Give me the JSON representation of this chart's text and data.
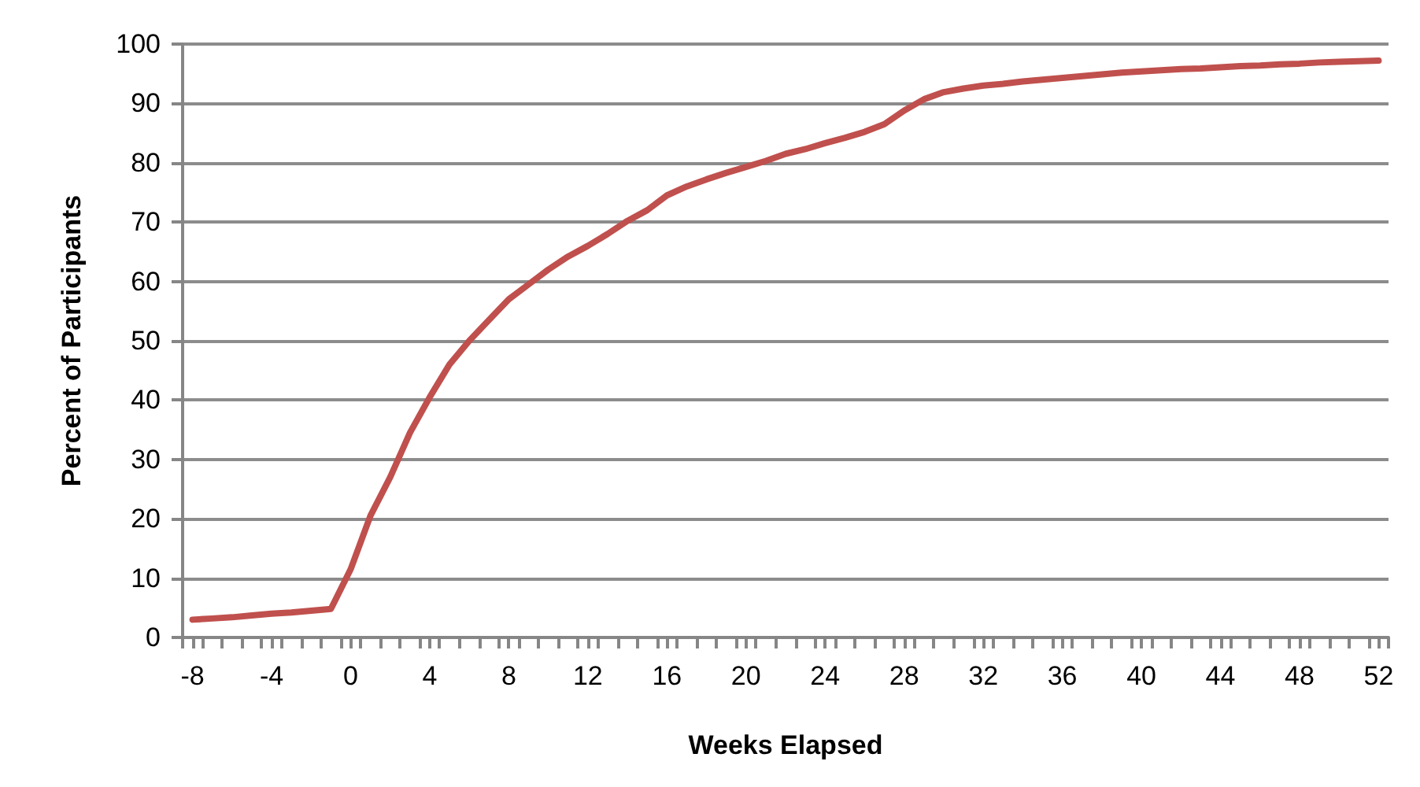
{
  "chart_data": {
    "type": "line",
    "xlabel": "Weeks Elapsed",
    "ylabel": "Percent of Participants",
    "x": [
      -8,
      -7,
      -6,
      -5,
      -4,
      -3,
      -2,
      -1,
      0,
      1,
      2,
      3,
      4,
      5,
      6,
      7,
      8,
      9,
      10,
      11,
      12,
      13,
      14,
      15,
      16,
      17,
      18,
      19,
      20,
      21,
      22,
      23,
      24,
      25,
      26,
      27,
      28,
      29,
      30,
      31,
      32,
      33,
      34,
      35,
      36,
      37,
      38,
      39,
      40,
      41,
      42,
      43,
      44,
      45,
      46,
      47,
      48,
      49,
      50,
      51,
      52
    ],
    "series": [
      {
        "color": "#c0504d",
        "values": [
          3,
          3.2,
          3.4,
          3.7,
          4,
          4.2,
          4.5,
          4.8,
          11.5,
          20.5,
          27,
          34.5,
          40.5,
          46,
          50,
          53.5,
          57,
          59.5,
          62,
          64.2,
          66,
          68,
          70.2,
          72,
          74.5,
          76,
          77.2,
          78.3,
          79.3,
          80.3,
          81.5,
          82.3,
          83.3,
          84.2,
          85.2,
          86.5,
          88.8,
          90.7,
          91.9,
          92.5,
          93,
          93.3,
          93.7,
          94,
          94.3,
          94.6,
          94.9,
          95.2,
          95.4,
          95.6,
          95.8,
          95.9,
          96.1,
          96.3,
          96.4,
          96.6,
          96.7,
          96.9,
          97,
          97.1,
          97.2
        ]
      }
    ],
    "xlim": [
      -8.5,
      52.5
    ],
    "xticks": [
      -8,
      -4,
      0,
      4,
      8,
      12,
      16,
      20,
      24,
      28,
      32,
      36,
      40,
      44,
      48,
      52,
      {
        "value": -8.5,
        "label": null
      },
      {
        "value": -7.5,
        "label": null
      },
      {
        "value": -6.5,
        "label": null
      },
      {
        "value": -5.5,
        "label": null
      },
      {
        "value": -4.5,
        "label": null
      },
      {
        "value": -3.5,
        "label": null
      },
      {
        "value": -2.5,
        "label": null
      },
      {
        "value": -1.5,
        "label": null
      },
      {
        "value": -0.5,
        "label": null
      },
      {
        "value": 0.5,
        "label": null
      },
      {
        "value": 1.5,
        "label": null
      },
      {
        "value": 2.5,
        "label": null
      },
      {
        "value": 3.5,
        "label": null
      },
      {
        "value": 4.5,
        "label": null
      },
      {
        "value": 5.5,
        "label": null
      },
      {
        "value": 6.5,
        "label": null
      },
      {
        "value": 7.5,
        "label": null
      },
      {
        "value": 8.5,
        "label": null
      },
      {
        "value": 9.5,
        "label": null
      },
      {
        "value": 10.5,
        "label": null
      },
      {
        "value": 11.5,
        "label": null
      },
      {
        "value": 12.5,
        "label": null
      },
      {
        "value": 13.5,
        "label": null
      },
      {
        "value": 14.5,
        "label": null
      },
      {
        "value": 15.5,
        "label": null
      },
      {
        "value": 16.5,
        "label": null
      },
      {
        "value": 17.5,
        "label": null
      },
      {
        "value": 18.5,
        "label": null
      },
      {
        "value": 19.5,
        "label": null
      },
      {
        "value": 20.5,
        "label": null
      },
      {
        "value": 21.5,
        "label": null
      },
      {
        "value": 22.5,
        "label": null
      },
      {
        "value": 23.5,
        "label": null
      },
      {
        "value": 24.5,
        "label": null
      },
      {
        "value": 25.5,
        "label": null
      },
      {
        "value": 26.5,
        "label": null
      },
      {
        "value": 27.5,
        "label": null
      },
      {
        "value": 28.5,
        "label": null
      },
      {
        "value": 29.5,
        "label": null
      },
      {
        "value": 30.5,
        "label": null
      },
      {
        "value": 31.5,
        "label": null
      },
      {
        "value": 32.5,
        "label": null
      },
      {
        "value": 33.5,
        "label": null
      },
      {
        "value": 34.5,
        "label": null
      },
      {
        "value": 35.5,
        "label": null
      },
      {
        "value": 36.5,
        "label": null
      },
      {
        "value": 37.5,
        "label": null
      },
      {
        "value": 38.5,
        "label": null
      },
      {
        "value": 39.5,
        "label": null
      },
      {
        "value": 40.5,
        "label": null
      },
      {
        "value": 41.5,
        "label": null
      },
      {
        "value": 42.5,
        "label": null
      },
      {
        "value": 43.5,
        "label": null
      },
      {
        "value": 44.5,
        "label": null
      },
      {
        "value": 45.5,
        "label": null
      },
      {
        "value": 46.5,
        "label": null
      },
      {
        "value": 47.5,
        "label": null
      },
      {
        "value": 48.5,
        "label": null
      },
      {
        "value": 49.5,
        "label": null
      },
      {
        "value": 50.5,
        "label": null
      },
      {
        "value": 51.5,
        "label": null
      },
      {
        "value": 52.5,
        "label": null
      }
    ],
    "ylim": [
      0,
      100
    ],
    "yticks": [
      0,
      10,
      20,
      30,
      40,
      50,
      60,
      70,
      80,
      90,
      100
    ],
    "grid": "y",
    "marker": "none",
    "line_style": "solid"
  }
}
